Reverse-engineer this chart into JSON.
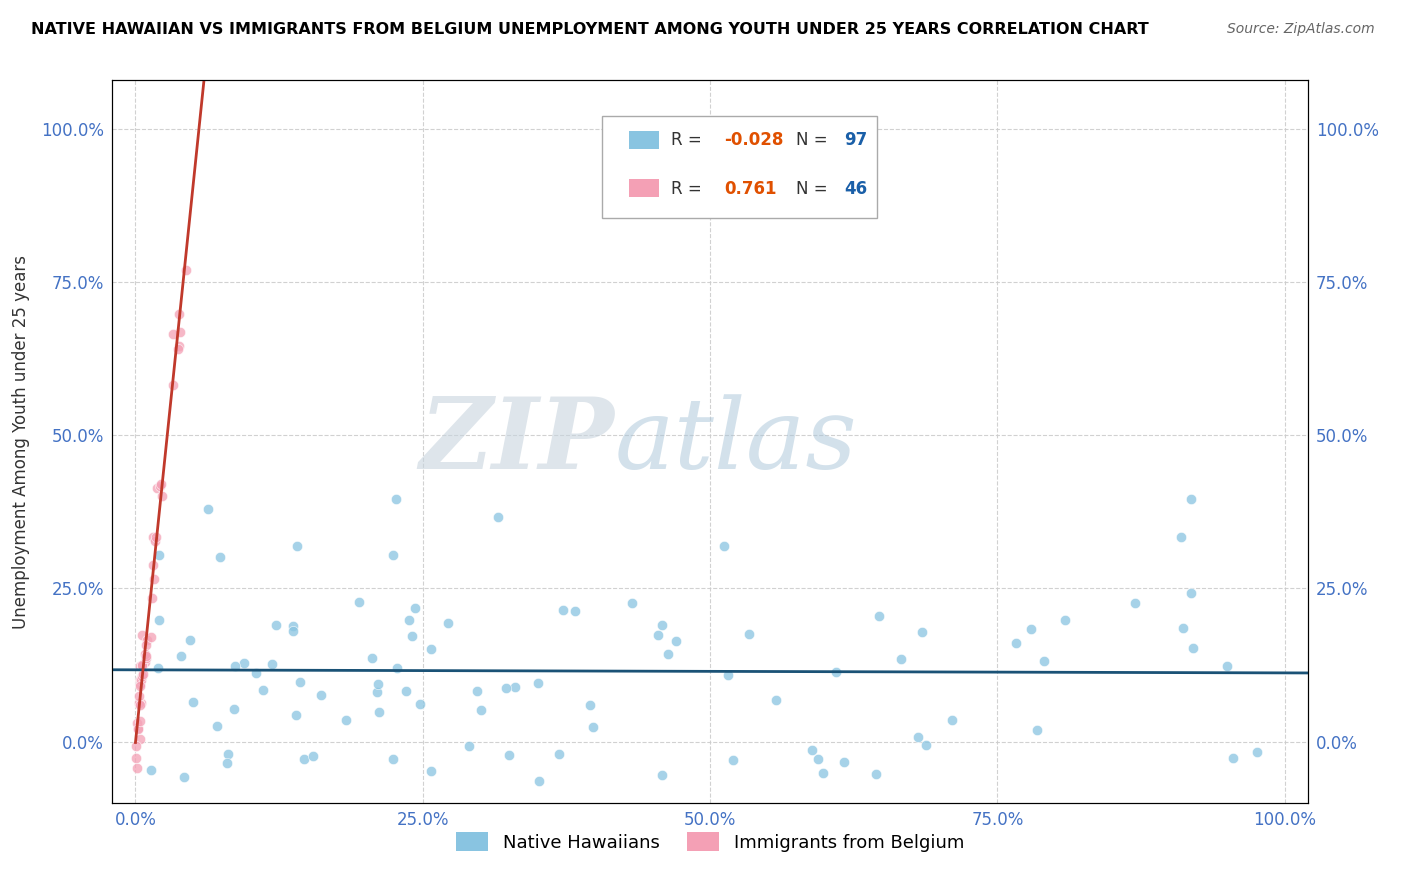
{
  "title": "NATIVE HAWAIIAN VS IMMIGRANTS FROM BELGIUM UNEMPLOYMENT AMONG YOUTH UNDER 25 YEARS CORRELATION CHART",
  "source": "Source: ZipAtlas.com",
  "ylabel": "Unemployment Among Youth under 25 years",
  "xtick_labels": [
    "0.0%",
    "25.0%",
    "50.0%",
    "75.0%",
    "100.0%"
  ],
  "ytick_labels_left": [
    "0.0%",
    "25.0%",
    "50.0%",
    "75.0%",
    "100.0%"
  ],
  "ytick_labels_right": [
    "0.0%",
    "25.0%",
    "50.0%",
    "75.0%",
    "100.0%"
  ],
  "blue_color": "#89c4e1",
  "pink_color": "#f4a0b5",
  "trendline_blue": "#1a5276",
  "trendline_pink": "#c0392b",
  "legend_R_blue": "-0.028",
  "legend_N_blue": "97",
  "legend_R_pink": "0.761",
  "legend_N_pink": "46",
  "label_blue": "Native Hawaiians",
  "label_pink": "Immigrants from Belgium",
  "watermark_zip": "ZIP",
  "watermark_atlas": "atlas",
  "r_value_color": "#e05000",
  "n_value_color": "#1a5fa8"
}
